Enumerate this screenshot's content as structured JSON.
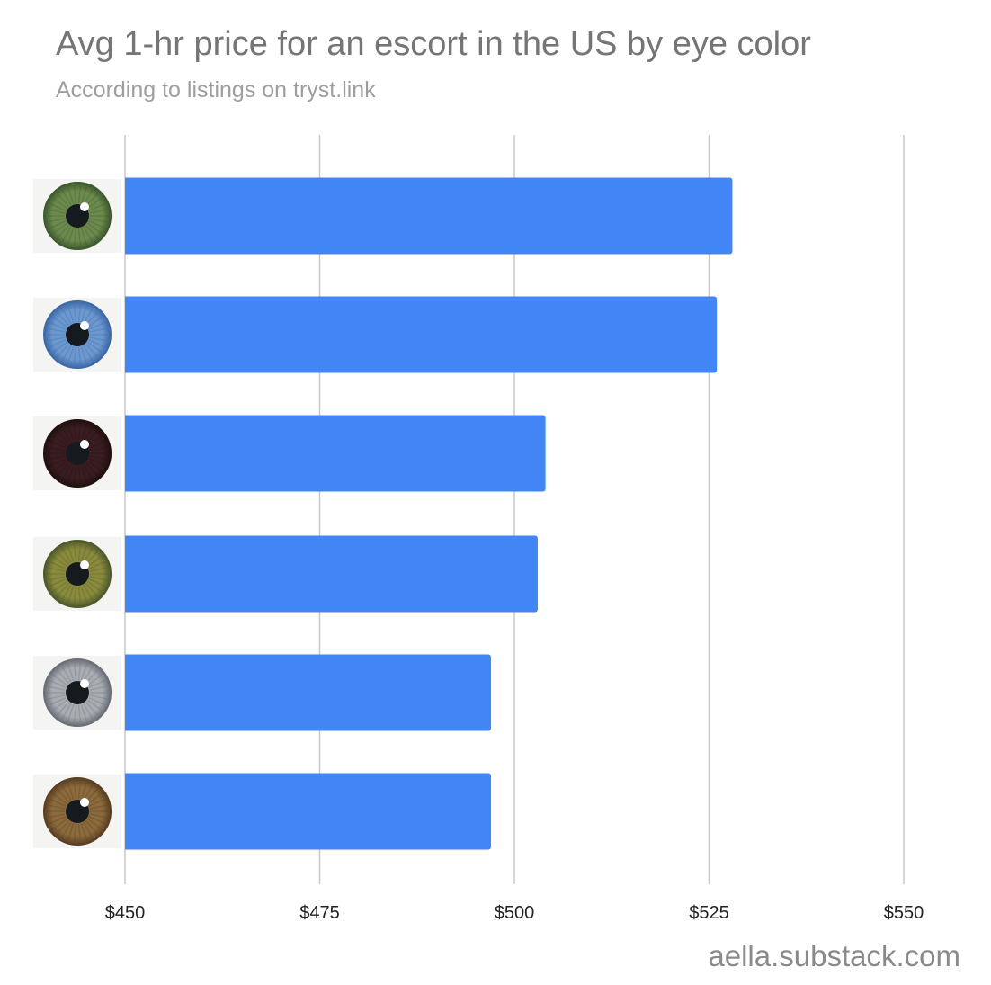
{
  "header": {
    "title": "Avg 1-hr price for an escort in the US by eye color",
    "subtitle": "According to listings on tryst.link"
  },
  "footer": {
    "watermark": "aella.substack.com"
  },
  "colors": {
    "bar": "#4285f4",
    "gridline": "#c8c8c8",
    "title": "#757575",
    "subtitle": "#9e9e9e"
  },
  "chart_data": {
    "type": "bar",
    "orientation": "horizontal",
    "title": "Avg 1-hr price for an escort in the US by eye color",
    "subtitle": "According to listings on tryst.link",
    "xlabel": "",
    "ylabel": "",
    "xlim": [
      450,
      550
    ],
    "x_ticks": [
      "$450",
      "$475",
      "$500",
      "$525",
      "$550"
    ],
    "x_tick_values": [
      450,
      475,
      500,
      525,
      550
    ],
    "grid": true,
    "legend": "none",
    "category_icons": [
      {
        "icon": "green-eye-icon",
        "iris": "#6d8a4e",
        "rim": "#3e5a2e"
      },
      {
        "icon": "blue-eye-icon",
        "iris": "#6c98cf",
        "rim": "#3d6aa8"
      },
      {
        "icon": "dark-brown-eye-icon",
        "iris": "#3a1d22",
        "rim": "#22100f"
      },
      {
        "icon": "hazel-eye-icon",
        "iris": "#8a8a3c",
        "rim": "#4f5a2c"
      },
      {
        "icon": "gray-eye-icon",
        "iris": "#a9adb2",
        "rim": "#6b7078"
      },
      {
        "icon": "brown-eye-icon",
        "iris": "#8b6a3c",
        "rim": "#5a3f22"
      }
    ],
    "values": [
      528,
      526,
      504,
      503,
      497,
      497
    ]
  }
}
